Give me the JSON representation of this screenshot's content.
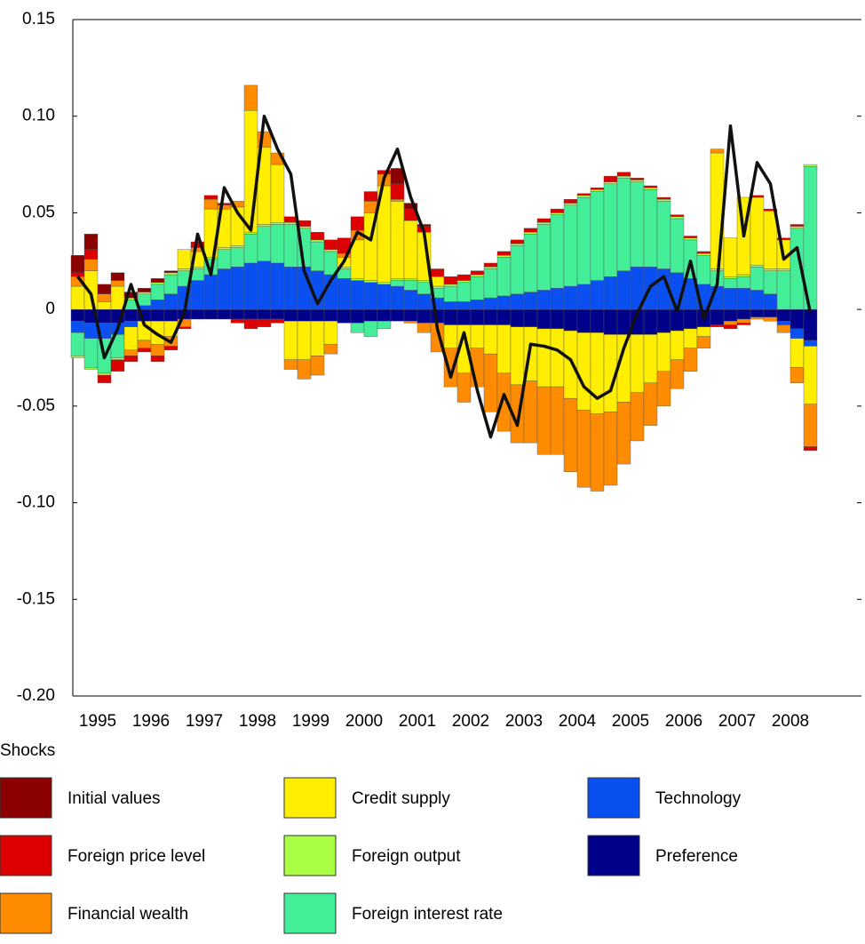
{
  "chart_data": {
    "type": "stacked-bar-line",
    "categories": [
      "1995",
      "1995",
      "1995",
      "1995",
      "1996",
      "1996",
      "1996",
      "1996",
      "1997",
      "1997",
      "1997",
      "1997",
      "1998",
      "1998",
      "1998",
      "1998",
      "1999",
      "1999",
      "1999",
      "1999",
      "2000",
      "2000",
      "2000",
      "2000",
      "2001",
      "2001",
      "2001",
      "2001",
      "2002",
      "2002",
      "2002",
      "2002",
      "2003",
      "2003",
      "2003",
      "2003",
      "2004",
      "2004",
      "2004",
      "2004",
      "2005",
      "2005",
      "2005",
      "2005",
      "2006",
      "2006",
      "2006",
      "2006",
      "2007",
      "2007",
      "2007",
      "2007",
      "2008",
      "2008",
      "2008",
      "2008"
    ],
    "ylim": [
      -0.2,
      0.15
    ],
    "yticks": [
      {
        "value": -0.2,
        "label": "-0.20"
      },
      -0.15,
      {
        "value": -0.1,
        "label": "-0.10"
      },
      -0.05,
      0,
      0.05,
      {
        "value": 0.1,
        "label": "0.10"
      },
      0.15
    ],
    "legend_title": "Shocks",
    "series": [
      {
        "name": "Initial values",
        "color": "#8b0000",
        "values": [
          0.009,
          0.008,
          0.005,
          0.004,
          0.003,
          0.002,
          0.002,
          0.001,
          0,
          0,
          0,
          0,
          0,
          0,
          0,
          0,
          0,
          0,
          0,
          0,
          0,
          0,
          0,
          0,
          0.008,
          0.003,
          0.001,
          0,
          0,
          0,
          0,
          0,
          0,
          0,
          0,
          0,
          0,
          0,
          0,
          0,
          0,
          0,
          0,
          0,
          0,
          0,
          0,
          0,
          0,
          0,
          0,
          0,
          0,
          0,
          0,
          0
        ]
      },
      {
        "name": "Foreign price level",
        "color": "#dd0000",
        "values": [
          0.002,
          0.005,
          -0.004,
          -0.006,
          -0.003,
          -0.002,
          -0.003,
          -0.002,
          -0.001,
          0.003,
          0.002,
          0.001,
          -0.002,
          -0.005,
          -0.004,
          -0.002,
          0.003,
          0.003,
          0.004,
          0.005,
          0.008,
          0.007,
          0.005,
          0.002,
          0.008,
          0.006,
          0.003,
          0.004,
          0.004,
          0.003,
          0.002,
          0.002,
          0.002,
          0.002,
          0.002,
          0.002,
          0.002,
          0.002,
          0.001,
          0.001,
          0.003,
          0.002,
          0.001,
          0.001,
          0.001,
          0.001,
          0.001,
          0.001,
          -0.001,
          -0.002,
          -0.001,
          0.001,
          0.001,
          0.001,
          0.001,
          -0.002
        ]
      },
      {
        "name": "Financial wealth",
        "color": "#ff8c00",
        "values": [
          0.005,
          0.006,
          0.004,
          0.003,
          -0.003,
          -0.004,
          -0.006,
          -0.005,
          -0.004,
          0.002,
          0.005,
          0.002,
          0.003,
          0.013,
          0.008,
          0.006,
          -0.005,
          -0.01,
          -0.01,
          -0.005,
          0.002,
          0.005,
          0.006,
          0.006,
          0.001,
          -0.001,
          -0.005,
          -0.015,
          -0.02,
          -0.015,
          -0.02,
          -0.03,
          -0.03,
          -0.03,
          -0.032,
          -0.035,
          -0.035,
          -0.038,
          -0.04,
          -0.04,
          -0.038,
          -0.032,
          -0.025,
          -0.022,
          -0.018,
          -0.015,
          -0.012,
          -0.006,
          0.002,
          -0.002,
          -0.002,
          -0.001,
          -0.002,
          -0.004,
          -0.008,
          -0.022
        ]
      },
      {
        "name": "Credit supply",
        "color": "#ffee00",
        "values": [
          0.012,
          0.02,
          0.004,
          0.012,
          -0.012,
          -0.01,
          -0.012,
          -0.008,
          0.01,
          0.008,
          0.025,
          0.02,
          0.02,
          0.063,
          0.04,
          0.03,
          -0.02,
          -0.02,
          -0.018,
          -0.012,
          0.005,
          0.02,
          0.035,
          0.05,
          0.04,
          0.03,
          0.025,
          0.005,
          -0.012,
          -0.025,
          -0.012,
          -0.015,
          -0.025,
          -0.03,
          -0.028,
          -0.03,
          -0.03,
          -0.035,
          -0.04,
          -0.042,
          -0.04,
          -0.035,
          -0.03,
          -0.025,
          -0.02,
          -0.015,
          -0.01,
          -0.005,
          0.06,
          0.02,
          0.04,
          0.035,
          0.03,
          0.015,
          -0.015,
          -0.03
        ]
      },
      {
        "name": "Foreign output",
        "color": "#aaff44",
        "values": [
          -0.001,
          -0.001,
          -0.001,
          -0.001,
          0.001,
          0.001,
          0.001,
          0.001,
          0.001,
          0.001,
          0.001,
          0.001,
          0.001,
          0.001,
          0.001,
          0.001,
          0.001,
          0.001,
          0.001,
          0.001,
          0.001,
          0.001,
          0.001,
          0.001,
          0.001,
          0.001,
          0.001,
          0.001,
          0.001,
          0.001,
          0.001,
          0.001,
          0.001,
          0.001,
          0.001,
          0.001,
          0.001,
          0.001,
          0.001,
          0.001,
          0.001,
          0.001,
          0.001,
          0.001,
          0.001,
          0.001,
          0.001,
          0.001,
          0.001,
          0.001,
          0.001,
          0.001,
          0.001,
          0.001,
          0.001,
          0.001
        ]
      },
      {
        "name": "Foreign interest rate",
        "color": "#44ee99",
        "values": [
          -0.012,
          -0.015,
          -0.018,
          -0.012,
          0.005,
          0.006,
          0.008,
          0.01,
          0.008,
          0.006,
          0.008,
          0.01,
          0.01,
          0.015,
          0.018,
          0.02,
          0.022,
          0.02,
          0.015,
          0.012,
          0.005,
          -0.005,
          -0.008,
          -0.004,
          0.003,
          0.005,
          0.006,
          0.005,
          0.008,
          0.01,
          0.012,
          0.015,
          0.02,
          0.025,
          0.03,
          0.034,
          0.038,
          0.042,
          0.045,
          0.046,
          0.048,
          0.048,
          0.044,
          0.04,
          0.035,
          0.028,
          0.02,
          0.015,
          0.008,
          0.005,
          0.006,
          0.012,
          0.012,
          0.02,
          0.042,
          0.074
        ]
      },
      {
        "name": "Technology",
        "color": "#0a50f0",
        "values": [
          -0.006,
          -0.008,
          -0.008,
          -0.006,
          -0.003,
          0.002,
          0.005,
          0.008,
          0.012,
          0.015,
          0.018,
          0.021,
          0.022,
          0.024,
          0.025,
          0.024,
          0.022,
          0.022,
          0.02,
          0.018,
          0.016,
          0.015,
          0.014,
          0.013,
          0.012,
          0.01,
          0.008,
          0.006,
          0.004,
          0.004,
          0.005,
          0.006,
          0.007,
          0.008,
          0.009,
          0.01,
          0.011,
          0.012,
          0.013,
          0.015,
          0.017,
          0.02,
          0.022,
          0.022,
          0.021,
          0.019,
          0.016,
          0.013,
          0.012,
          0.011,
          0.011,
          0.01,
          0.008,
          -0.002,
          -0.005,
          -0.003
        ]
      },
      {
        "name": "Preference",
        "color": "#00008b",
        "values": [
          -0.006,
          -0.007,
          -0.007,
          -0.007,
          -0.006,
          -0.006,
          -0.006,
          -0.006,
          -0.005,
          -0.005,
          -0.005,
          -0.005,
          -0.005,
          -0.005,
          -0.005,
          -0.005,
          -0.006,
          -0.006,
          -0.006,
          -0.006,
          -0.007,
          -0.007,
          -0.006,
          -0.006,
          -0.006,
          -0.006,
          -0.007,
          -0.007,
          -0.008,
          -0.008,
          -0.008,
          -0.008,
          -0.008,
          -0.009,
          -0.009,
          -0.01,
          -0.01,
          -0.011,
          -0.012,
          -0.012,
          -0.013,
          -0.013,
          -0.013,
          -0.013,
          -0.012,
          -0.011,
          -0.01,
          -0.009,
          -0.008,
          -0.006,
          -0.005,
          -0.004,
          -0.004,
          -0.006,
          -0.01,
          -0.016
        ]
      }
    ],
    "line": {
      "color": "#111111",
      "values": [
        0.017,
        0.008,
        -0.025,
        -0.01,
        0.013,
        -0.008,
        -0.013,
        -0.017,
        -0.002,
        0.039,
        0.018,
        0.063,
        0.05,
        0.041,
        0.1,
        0.083,
        0.07,
        0.02,
        0.003,
        0.015,
        0.025,
        0.04,
        0.036,
        0.068,
        0.083,
        0.058,
        0.04,
        -0.01,
        -0.035,
        -0.012,
        -0.042,
        -0.066,
        -0.044,
        -0.06,
        -0.018,
        -0.019,
        -0.021,
        -0.026,
        -0.04,
        -0.046,
        -0.042,
        -0.02,
        -0.002,
        0.012,
        0.017,
        -0.001,
        0.025,
        -0.005,
        0.013,
        0.095,
        0.038,
        0.076,
        0.065,
        0.026,
        0.032,
        -0.002
      ]
    }
  }
}
